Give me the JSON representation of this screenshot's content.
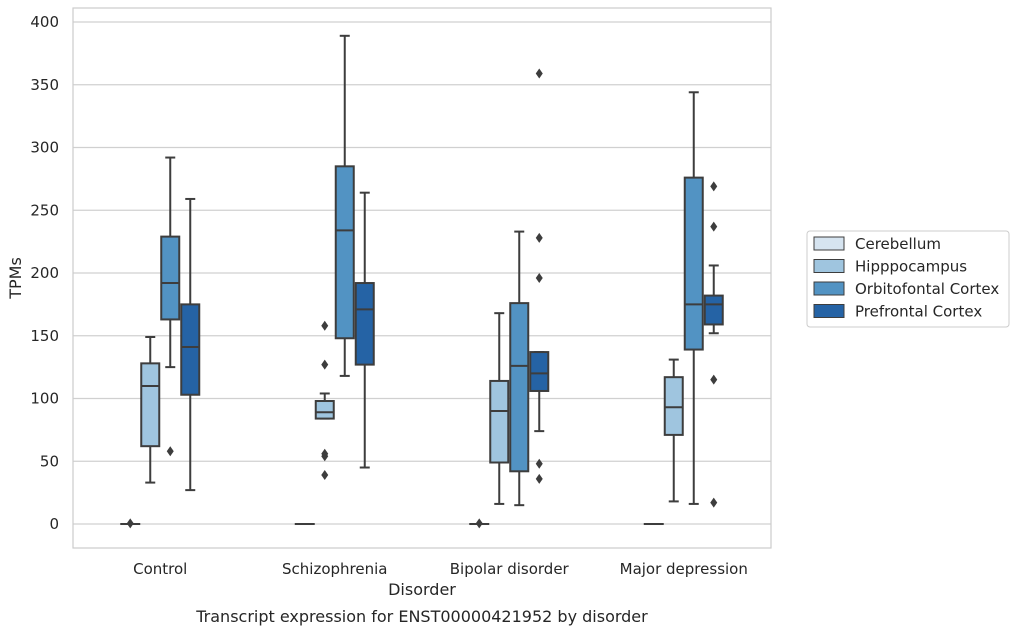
{
  "chart_data": {
    "type": "box",
    "caption": "Transcript expression for ENST00000421952 by disorder",
    "xlabel": "Disorder",
    "ylabel": "TPMs",
    "ylim": [
      -18,
      410
    ],
    "yticks": [
      0,
      50,
      100,
      150,
      200,
      250,
      300,
      350,
      400
    ],
    "grid": true,
    "legend_position": "right",
    "categories": [
      "Control",
      "Schizophrenia",
      "Bipolar disorder",
      "Major depression"
    ],
    "series": [
      {
        "name": "Cerebellum",
        "color": "#d6e4f0",
        "boxes": [
          {
            "q1": 0,
            "median": 0,
            "q3": 0,
            "whisker_low": 0,
            "whisker_high": 0,
            "outliers": [
              0.5
            ]
          },
          {
            "q1": 0,
            "median": 0,
            "q3": 0,
            "whisker_low": 0,
            "whisker_high": 0,
            "outliers": []
          },
          {
            "q1": 0,
            "median": 0,
            "q3": 0,
            "whisker_low": 0,
            "whisker_high": 0,
            "outliers": [
              0.5
            ]
          },
          {
            "q1": 0,
            "median": 0,
            "q3": 0,
            "whisker_low": 0,
            "whisker_high": 0,
            "outliers": []
          }
        ]
      },
      {
        "name": "Hipppocampus",
        "color": "#9fc5df",
        "boxes": [
          {
            "q1": 62,
            "median": 110,
            "q3": 128,
            "whisker_low": 33,
            "whisker_high": 149,
            "outliers": []
          },
          {
            "q1": 84,
            "median": 89,
            "q3": 98,
            "whisker_low": 84,
            "whisker_high": 104,
            "outliers": [
              158,
              127,
              56,
              54,
              39
            ]
          },
          {
            "q1": 49,
            "median": 90,
            "q3": 114,
            "whisker_low": 16,
            "whisker_high": 168,
            "outliers": []
          },
          {
            "q1": 71,
            "median": 93,
            "q3": 117,
            "whisker_low": 18,
            "whisker_high": 131,
            "outliers": []
          }
        ]
      },
      {
        "name": "Orbitofontal Cortex",
        "color": "#5293c3",
        "boxes": [
          {
            "q1": 163,
            "median": 192,
            "q3": 229,
            "whisker_low": 125,
            "whisker_high": 292,
            "outliers": [
              58
            ]
          },
          {
            "q1": 148,
            "median": 234,
            "q3": 285,
            "whisker_low": 118,
            "whisker_high": 389,
            "outliers": []
          },
          {
            "q1": 42,
            "median": 126,
            "q3": 176,
            "whisker_low": 15,
            "whisker_high": 233,
            "outliers": []
          },
          {
            "q1": 139,
            "median": 175,
            "q3": 276,
            "whisker_low": 16,
            "whisker_high": 344,
            "outliers": []
          }
        ]
      },
      {
        "name": "Prefrontal Cortex",
        "color": "#2563a5",
        "boxes": [
          {
            "q1": 103,
            "median": 141,
            "q3": 175,
            "whisker_low": 27,
            "whisker_high": 259,
            "outliers": []
          },
          {
            "q1": 127,
            "median": 171,
            "q3": 192,
            "whisker_low": 45,
            "whisker_high": 264,
            "outliers": []
          },
          {
            "q1": 106,
            "median": 120,
            "q3": 137,
            "whisker_low": 74,
            "whisker_high": 137,
            "outliers": [
              359,
              228,
              196,
              48,
              36
            ]
          },
          {
            "q1": 159,
            "median": 175,
            "q3": 182,
            "whisker_low": 152,
            "whisker_high": 206,
            "outliers": [
              269,
              237,
              115,
              17
            ]
          }
        ]
      }
    ]
  }
}
